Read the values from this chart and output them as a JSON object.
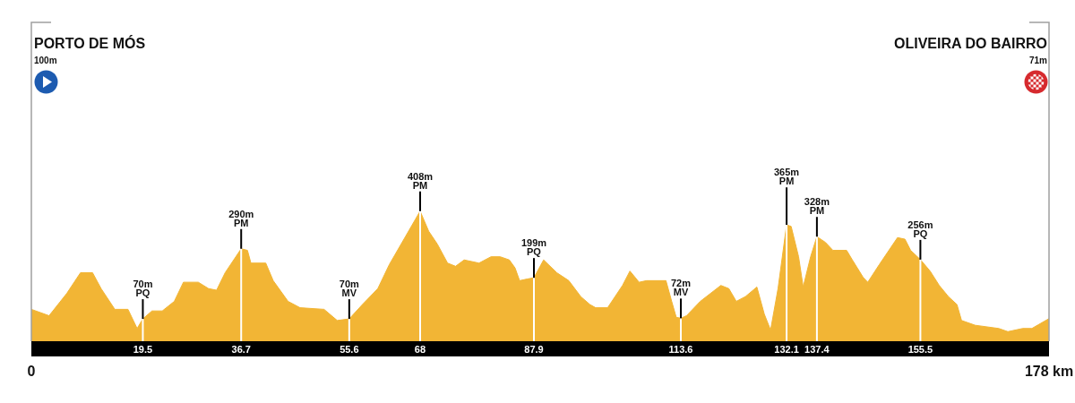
{
  "chart_data": {
    "type": "area",
    "color": "#f2b535",
    "annotations": [
      "PORTO DE MÓS",
      "100m",
      "OLIVEIRA DO BAIRRO",
      "71m"
    ],
    "x": [
      0,
      3.1,
      6.2,
      8.6,
      10.7,
      12.2,
      14.6,
      16.9,
      18.5,
      19.5,
      21.1,
      22.9,
      25.0,
      26.6,
      29.2,
      31.0,
      32.4,
      33.9,
      36.7,
      37.8,
      38.4,
      41.0,
      42.3,
      44.9,
      47.0,
      51.2,
      53.5,
      55.6,
      57.9,
      60.6,
      62.6,
      68,
      69.5,
      71.0,
      72.8,
      74.2,
      75.7,
      78.3,
      80.4,
      82.0,
      83.6,
      84.6,
      85.4,
      86.7,
      87.9,
      89.6,
      91.9,
      94.0,
      96.1,
      97.7,
      98.7,
      100.8,
      103.4,
      104.7,
      106.3,
      107.6,
      111.0,
      112.0,
      112.8,
      113.6,
      114.6,
      117.0,
      120.6,
      122.0,
      123.3,
      124.9,
      126.9,
      128.2,
      129.3,
      130.6,
      132.1,
      132.9,
      134.2,
      135.0,
      136.3,
      137.4,
      138.9,
      140.2,
      142.6,
      143.6,
      145.5,
      146.3,
      148.3,
      151.5,
      152.8,
      153.8,
      155.5,
      157.2,
      158.8,
      160.4,
      161.9,
      162.7,
      165.1,
      169.2,
      170.8,
      173.4,
      175.0,
      178
    ],
    "values": [
      100,
      80,
      150,
      215,
      215,
      165,
      100,
      100,
      40,
      70,
      95,
      95,
      125,
      185,
      185,
      165,
      160,
      215,
      290,
      285,
      245,
      245,
      190,
      125,
      105,
      100,
      65,
      70,
      115,
      165,
      240,
      408,
      345,
      305,
      245,
      235,
      255,
      245,
      265,
      265,
      255,
      230,
      190,
      195,
      199,
      255,
      215,
      190,
      140,
      115,
      105,
      105,
      175,
      220,
      185,
      190,
      190,
      125,
      75,
      72,
      80,
      125,
      175,
      165,
      125,
      140,
      170,
      85,
      35,
      165,
      365,
      360,
      265,
      170,
      265,
      328,
      310,
      285,
      285,
      255,
      200,
      185,
      240,
      325,
      320,
      285,
      256,
      220,
      175,
      140,
      115,
      65,
      50,
      40,
      30,
      40,
      40,
      71
    ],
    "value_labels": [
      null,
      null,
      null,
      null,
      null,
      null,
      null,
      null,
      null,
      "70m\nPQ",
      null,
      null,
      null,
      null,
      null,
      null,
      null,
      null,
      "290m\nPM",
      null,
      null,
      null,
      null,
      null,
      null,
      null,
      null,
      "70m\nMV",
      null,
      null,
      null,
      "408m\nPM",
      null,
      null,
      null,
      null,
      null,
      null,
      null,
      null,
      null,
      null,
      null,
      null,
      "199m\nPQ",
      null,
      null,
      null,
      null,
      null,
      null,
      null,
      null,
      null,
      null,
      null,
      null,
      null,
      null,
      "72m\nMV",
      null,
      null,
      null,
      null,
      null,
      null,
      null,
      null,
      null,
      null,
      "365m\nPM",
      null,
      null,
      null,
      null,
      "328m\nPM",
      null,
      null,
      null,
      null,
      null,
      null,
      null,
      null,
      null,
      null,
      "256m\nPQ",
      null,
      null,
      null,
      null,
      null,
      null,
      null,
      null,
      null,
      null,
      null
    ],
    "ref_lines": [
      {
        "axis": "x",
        "value": 19.5,
        "label": "19.5",
        "color": "#ffffff"
      },
      {
        "axis": "x",
        "value": 36.7,
        "label": "36.7",
        "color": "#ffffff"
      },
      {
        "axis": "x",
        "value": 55.6,
        "label": "55.6",
        "color": "#ffffff"
      },
      {
        "axis": "x",
        "value": 68,
        "label": "68",
        "color": "#ffffff"
      },
      {
        "axis": "x",
        "value": 87.9,
        "label": "87.9",
        "color": "#ffffff"
      },
      {
        "axis": "x",
        "value": 113.6,
        "label": "113.6",
        "color": "#ffffff"
      },
      {
        "axis": "x",
        "value": 132.1,
        "label": "132.1",
        "color": "#ffffff"
      },
      {
        "axis": "x",
        "value": 137.4,
        "label": "137.4",
        "color": "#ffffff"
      },
      {
        "axis": "x",
        "value": 155.5,
        "label": "155.5",
        "color": "#ffffff"
      }
    ],
    "xlim": [
      0,
      178
    ],
    "xticks": [
      {
        "value": 0,
        "label": "0"
      },
      {
        "value": 178,
        "label": "178 km"
      }
    ],
    "ylim": [
      0,
      1000
    ],
    "tick_labels": "x"
  }
}
